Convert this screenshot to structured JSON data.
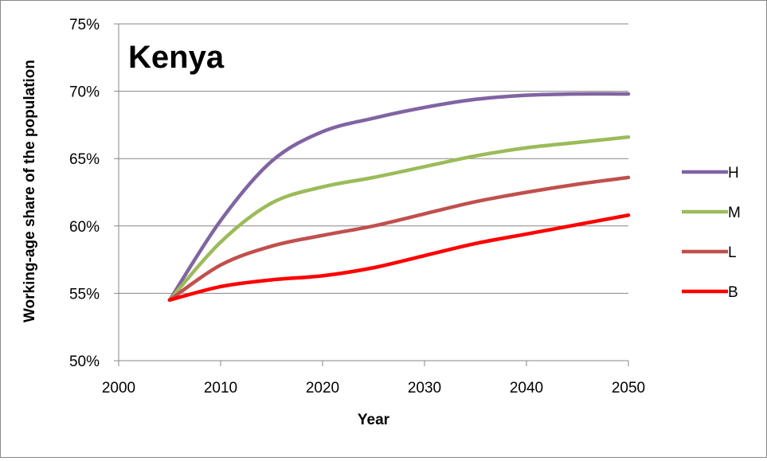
{
  "chart_data": {
    "type": "line",
    "title": "Kenya",
    "xlabel": "Year",
    "ylabel": "Working-age share of the population",
    "xlim": [
      2000,
      2050
    ],
    "ylim": [
      0.5,
      0.75
    ],
    "x_ticks": [
      2000,
      2010,
      2020,
      2030,
      2040,
      2050
    ],
    "x_tick_labels": [
      "2000",
      "2010",
      "2020",
      "2030",
      "2040",
      "2050"
    ],
    "y_ticks": [
      0.5,
      0.55,
      0.6,
      0.65,
      0.7,
      0.75
    ],
    "y_tick_labels": [
      "50%",
      "55%",
      "60%",
      "65%",
      "70%",
      "75%"
    ],
    "grid": "horizontal",
    "legend_position": "right",
    "x": [
      2005,
      2010,
      2015,
      2020,
      2025,
      2030,
      2035,
      2040,
      2045,
      2050
    ],
    "series": [
      {
        "name": "H",
        "color": "#8064A2",
        "values": [
          0.545,
          0.604,
          0.648,
          0.67,
          0.68,
          0.688,
          0.694,
          0.697,
          0.698,
          0.698
        ]
      },
      {
        "name": "M",
        "color": "#9BBB59",
        "values": [
          0.545,
          0.588,
          0.617,
          0.629,
          0.636,
          0.644,
          0.652,
          0.658,
          0.662,
          0.666
        ]
      },
      {
        "name": "L",
        "color": "#C0504D",
        "values": [
          0.545,
          0.571,
          0.585,
          0.593,
          0.6,
          0.609,
          0.618,
          0.625,
          0.631,
          0.636
        ]
      },
      {
        "name": "B",
        "color": "#FF0000",
        "values": [
          0.545,
          0.555,
          0.56,
          0.563,
          0.569,
          0.578,
          0.587,
          0.594,
          0.601,
          0.608
        ]
      }
    ]
  }
}
